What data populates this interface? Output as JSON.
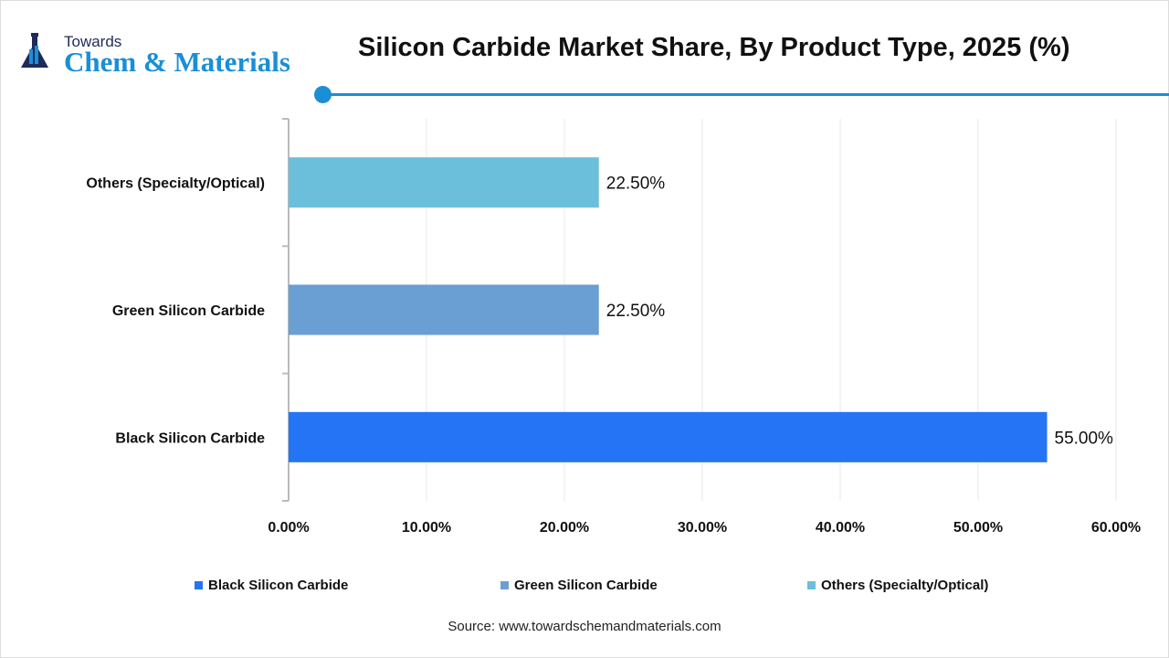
{
  "logo": {
    "line1": "Towards",
    "line2": "Chem & Materials"
  },
  "title": "Silicon Carbide Market Share, By Product Type, 2025 (%)",
  "source": "Source: www.towardschemandmaterials.com",
  "colors": {
    "accent": "#1a8fd6",
    "black_sic": "#2574f5",
    "green_sic": "#6a9fd4",
    "others": "#6bbfda"
  },
  "chart_data": {
    "type": "bar",
    "orientation": "horizontal",
    "title": "Silicon Carbide Market Share, By Product Type, 2025 (%)",
    "categories": [
      "Black Silicon Carbide",
      "Green Silicon Carbide",
      "Others (Specialty/Optical)"
    ],
    "values": [
      55.0,
      22.5,
      22.5
    ],
    "data_labels": [
      "55.00%",
      "22.50%",
      "22.50%"
    ],
    "xlim": [
      0,
      60
    ],
    "x_ticks": [
      "0.00%",
      "10.00%",
      "20.00%",
      "30.00%",
      "40.00%",
      "50.00%",
      "60.00%"
    ],
    "grid": "vertical",
    "legend": {
      "position": "bottom",
      "entries": [
        "Black Silicon Carbide",
        "Green Silicon Carbide",
        "Others (Specialty/Optical)"
      ]
    }
  }
}
